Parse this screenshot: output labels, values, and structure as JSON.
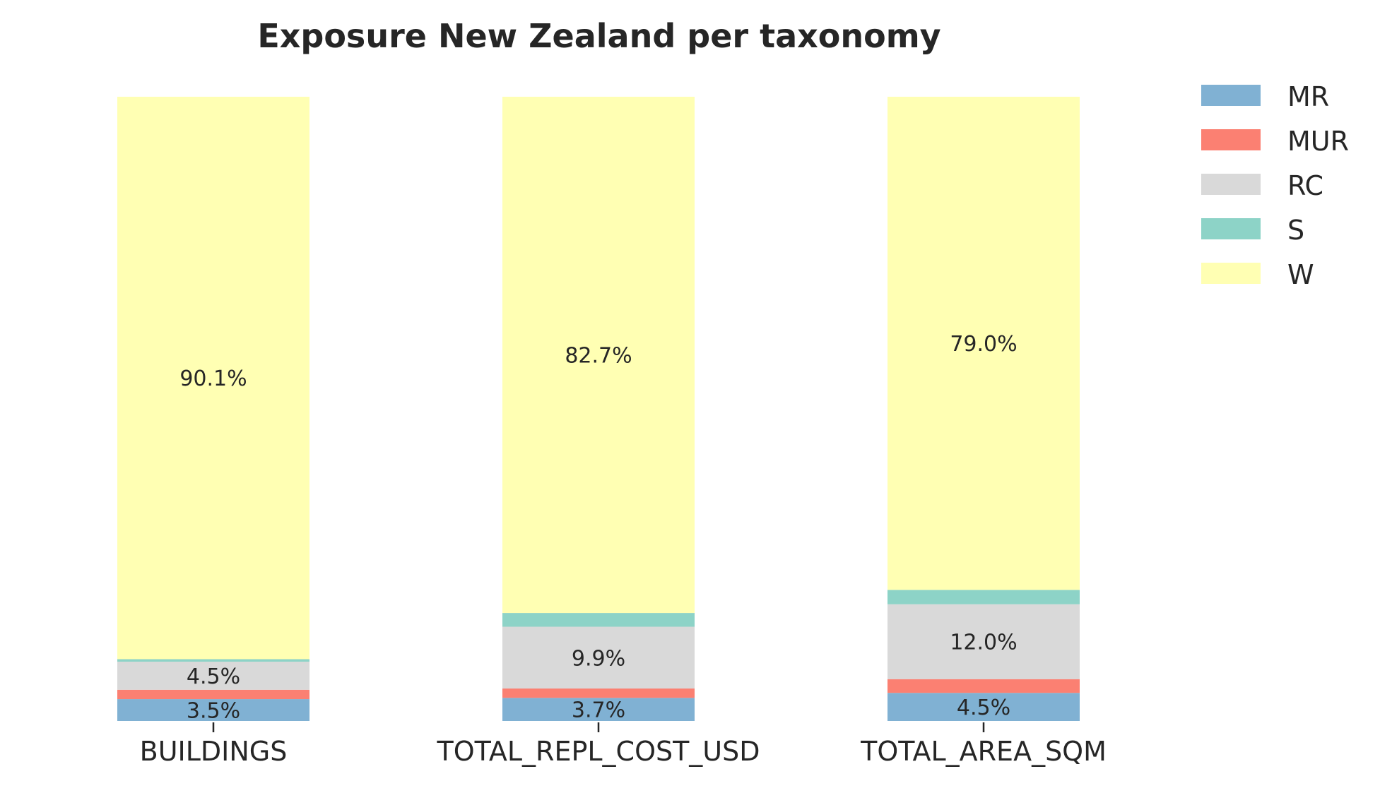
{
  "chart_data": {
    "type": "bar",
    "stacked": true,
    "normalized_percent": true,
    "title": "Exposure New Zealand per taxonomy",
    "xlabel": "",
    "ylabel": "",
    "ylim": [
      0,
      100
    ],
    "grid": false,
    "legend_position": "top-right",
    "categories": [
      "BUILDINGS",
      "TOTAL_REPL_COST_USD",
      "TOTAL_AREA_SQM"
    ],
    "series": [
      {
        "name": "MR",
        "color": "#80b1d3",
        "values": [
          3.5,
          3.7,
          4.5
        ],
        "labels": [
          "3.5%",
          "3.7%",
          "4.5%"
        ]
      },
      {
        "name": "MUR",
        "color": "#fb8072",
        "values": [
          1.5,
          1.5,
          2.2
        ],
        "labels": [
          "",
          "",
          ""
        ]
      },
      {
        "name": "RC",
        "color": "#d9d9d9",
        "values": [
          4.5,
          9.9,
          12.0
        ],
        "labels": [
          "4.5%",
          "9.9%",
          "12.0%"
        ]
      },
      {
        "name": "S",
        "color": "#8dd3c7",
        "values": [
          0.4,
          2.2,
          2.3
        ],
        "labels": [
          "",
          "",
          ""
        ]
      },
      {
        "name": "W",
        "color": "#ffffb3",
        "values": [
          90.1,
          82.7,
          79.0
        ],
        "labels": [
          "90.1%",
          "82.7%",
          "79.0%"
        ]
      }
    ]
  }
}
